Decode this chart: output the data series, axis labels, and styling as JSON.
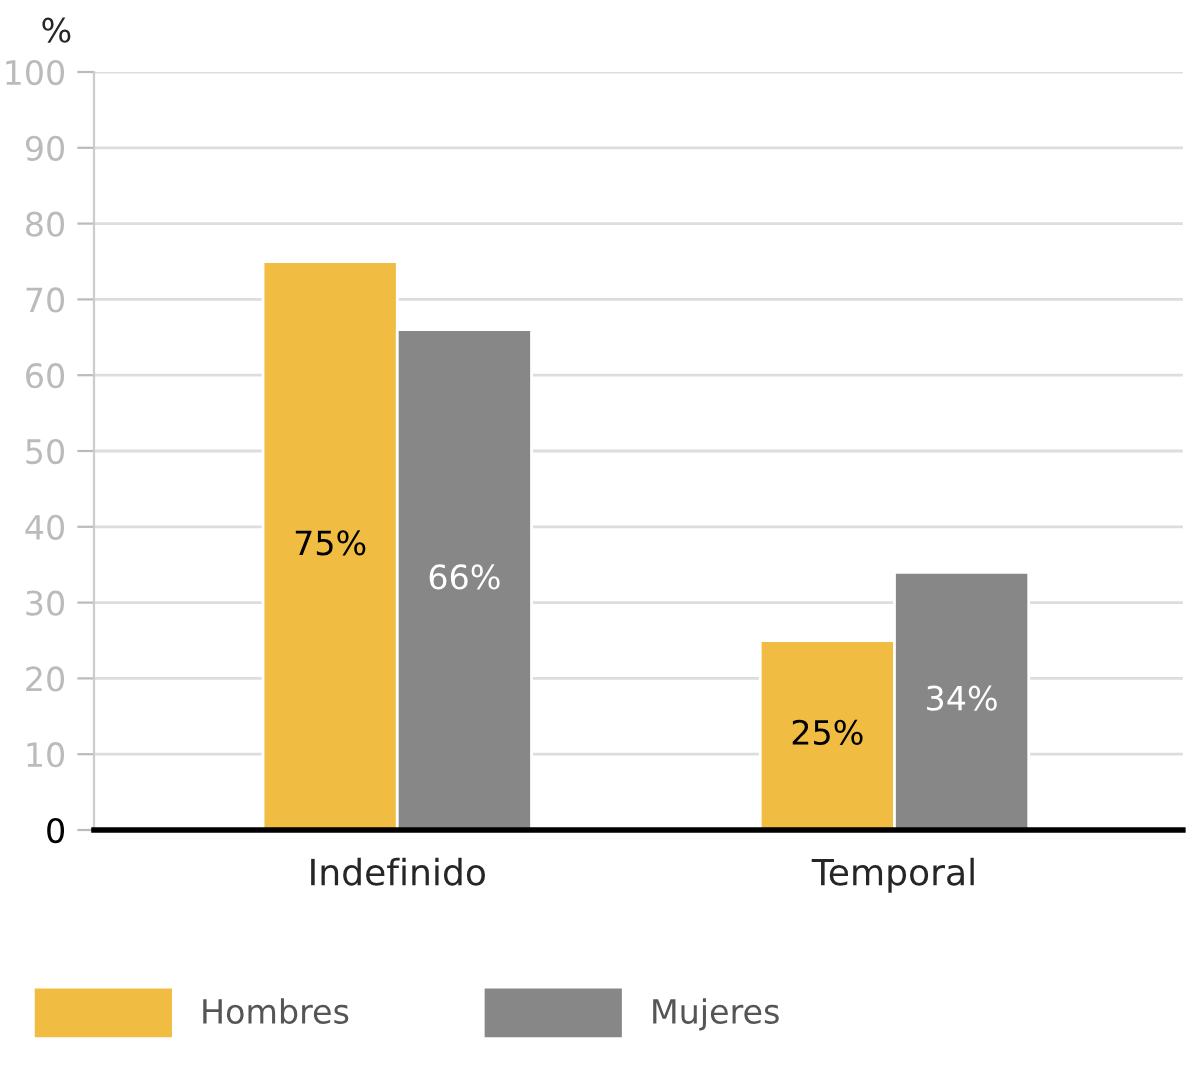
{
  "chart_data": {
    "type": "bar",
    "ylabel": "%",
    "categories": [
      "Indefinido",
      "Temporal"
    ],
    "series": [
      {
        "name": "Hombres",
        "color": "#f0bc41",
        "values": [
          75,
          25
        ],
        "value_labels": [
          "75%",
          "25%"
        ]
      },
      {
        "name": "Mujeres",
        "color": "#878787",
        "values": [
          66,
          34
        ],
        "value_labels": [
          "66%",
          "34%"
        ]
      }
    ],
    "ylim": [
      0,
      100
    ],
    "yticks": [
      0,
      10,
      20,
      30,
      40,
      50,
      60,
      70,
      80,
      90,
      100
    ],
    "grid": "y",
    "legend": "bottom"
  }
}
